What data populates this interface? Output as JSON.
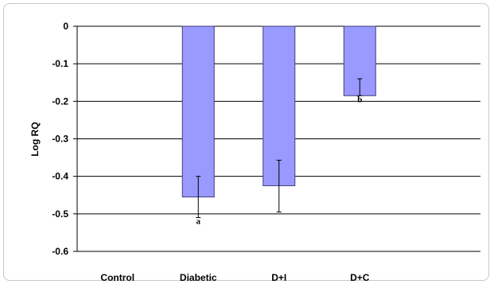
{
  "chart_data": {
    "type": "bar",
    "title": "",
    "xlabel": "",
    "ylabel": "Log RQ",
    "ylim": [
      -0.6,
      0
    ],
    "yticks": [
      0,
      -0.1,
      -0.2,
      -0.3,
      -0.4,
      -0.5,
      -0.6
    ],
    "ytick_labels": [
      "0",
      "-0.1",
      "-0.2",
      "-0.3",
      "-0.4",
      "-0.5",
      "-0.6"
    ],
    "grid": true,
    "categories": [
      "Control",
      "Diabetic",
      "D+I",
      "D+C"
    ],
    "values": [
      0,
      -0.455,
      -0.425,
      -0.185
    ],
    "error_upper": [
      0,
      -0.4,
      -0.357,
      -0.14
    ],
    "error_lower": [
      0,
      -0.51,
      -0.495,
      -0.185
    ],
    "annotations": [
      "",
      "a",
      "",
      "b"
    ],
    "bar_color": "#9999ff",
    "bar_edge_color": "#3f3f7f"
  }
}
